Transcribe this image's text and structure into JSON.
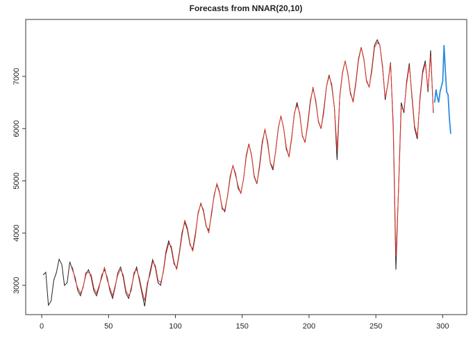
{
  "chart_data": {
    "type": "line",
    "title": "Forecasts from NNAR(20,10)",
    "x": [
      1,
      3,
      5,
      7,
      9,
      11,
      13,
      15,
      17,
      19,
      21,
      23,
      25,
      27,
      29,
      31,
      33,
      35,
      37,
      39,
      41,
      43,
      45,
      47,
      49,
      51,
      53,
      55,
      57,
      59,
      61,
      63,
      65,
      67,
      69,
      71,
      73,
      75,
      77,
      79,
      81,
      83,
      85,
      87,
      89,
      91,
      93,
      95,
      97,
      99,
      101,
      103,
      105,
      107,
      109,
      111,
      113,
      115,
      117,
      119,
      121,
      123,
      125,
      127,
      129,
      131,
      133,
      135,
      137,
      139,
      141,
      143,
      145,
      147,
      149,
      151,
      153,
      155,
      157,
      159,
      161,
      163,
      165,
      167,
      169,
      171,
      173,
      175,
      177,
      179,
      181,
      183,
      185,
      187,
      189,
      191,
      193,
      195,
      197,
      199,
      201,
      203,
      205,
      207,
      209,
      211,
      213,
      215,
      217,
      219,
      221,
      223,
      225,
      227,
      229,
      231,
      233,
      235,
      237,
      239,
      241,
      243,
      245,
      247,
      249,
      251,
      253,
      255,
      257,
      259,
      261,
      263,
      265,
      267,
      269,
      271,
      273,
      275,
      277,
      279,
      281,
      283,
      285,
      287,
      289,
      291,
      293
    ],
    "series": [
      {
        "color": "#222222",
        "values": [
          3200,
          3250,
          2620,
          2700,
          3100,
          3250,
          3500,
          3400,
          3000,
          3050,
          3450,
          3300,
          3150,
          2900,
          2800,
          2975,
          3200,
          3300,
          3150,
          2900,
          2800,
          2975,
          3200,
          3300,
          3150,
          2900,
          2750,
          2975,
          3250,
          3350,
          3150,
          2850,
          2750,
          2950,
          3200,
          3350,
          3100,
          2850,
          2600,
          3000,
          3260,
          3490,
          3340,
          3050,
          3000,
          3275,
          3650,
          3850,
          3700,
          3410,
          3330,
          3635,
          4010,
          4210,
          4060,
          3770,
          3690,
          3995,
          4370,
          4570,
          4420,
          4130,
          4050,
          4355,
          4730,
          4930,
          4780,
          4490,
          4410,
          4715,
          5090,
          5290,
          5140,
          4850,
          4770,
          5037,
          5486,
          5710,
          5484,
          5078,
          4942,
          5301,
          5750,
          5974,
          5748,
          5342,
          5206,
          5565,
          6014,
          6238,
          6012,
          5606,
          5470,
          5829,
          6278,
          6502,
          6276,
          5870,
          5734,
          6093,
          6542,
          6766,
          6540,
          6134,
          5998,
          6357,
          6806,
          7030,
          6804,
          6398,
          5400,
          6621,
          7070,
          7294,
          7068,
          6662,
          6526,
          6885,
          7334,
          7558,
          7332,
          6926,
          6790,
          7149,
          7598,
          7700,
          7596,
          7190,
          6550,
          6865,
          7270,
          6000,
          3300,
          4900,
          6500,
          6300,
          6900,
          7250,
          6600,
          6000,
          5800,
          6600,
          7100,
          7300,
          6700,
          7500,
          6300
        ]
      },
      {
        "color": "#e8372c",
        "values": [
          null,
          null,
          null,
          null,
          null,
          null,
          null,
          null,
          null,
          null,
          null,
          3350,
          3100,
          2950,
          2850,
          2950,
          3250,
          3250,
          3200,
          2950,
          2850,
          3000,
          3150,
          3350,
          3100,
          2950,
          2800,
          3000,
          3200,
          3300,
          3200,
          2900,
          2800,
          2900,
          3250,
          3300,
          3150,
          2900,
          2700,
          3050,
          3200,
          3450,
          3380,
          3100,
          3050,
          3250,
          3600,
          3800,
          3750,
          3450,
          3300,
          3600,
          3950,
          4250,
          4100,
          3800,
          3650,
          3950,
          4400,
          4550,
          4450,
          4150,
          4000,
          4400,
          4700,
          4950,
          4800,
          4450,
          4450,
          4700,
          5050,
          5300,
          5100,
          4900,
          4750,
          5050,
          5450,
          5700,
          5500,
          5100,
          4950,
          5250,
          5700,
          6000,
          5700,
          5350,
          5250,
          5550,
          6000,
          6250,
          6000,
          5650,
          5450,
          5800,
          6300,
          6450,
          6300,
          5850,
          5750,
          6050,
          6500,
          6800,
          6500,
          6150,
          6000,
          6300,
          6800,
          7000,
          6850,
          6400,
          5600,
          6600,
          7050,
          7300,
          7050,
          6700,
          6500,
          6850,
          7300,
          7550,
          7350,
          6900,
          6800,
          7100,
          7550,
          7650,
          7600,
          7150,
          6600,
          6850,
          7250,
          6100,
          3550,
          4850,
          6400,
          6350,
          6850,
          7200,
          6650,
          6050,
          5850,
          6550,
          7050,
          7250,
          6750,
          7400,
          6350
        ]
      },
      {
        "color": "#2b8be0",
        "x": [
          294,
          295,
          296,
          297,
          298,
          299,
          300,
          301,
          302,
          303,
          304,
          305,
          306
        ],
        "values": [
          6500,
          6750,
          6600,
          6500,
          6700,
          6800,
          6900,
          7600,
          7100,
          6700,
          6650,
          6200,
          5900
        ]
      }
    ],
    "xlim": [
      -12,
      318
    ],
    "ylim": [
      2440,
      8090
    ],
    "xticks": [
      0,
      50,
      100,
      150,
      200,
      250,
      300
    ],
    "yticks": [
      3000,
      4000,
      5000,
      6000,
      7000
    ]
  }
}
